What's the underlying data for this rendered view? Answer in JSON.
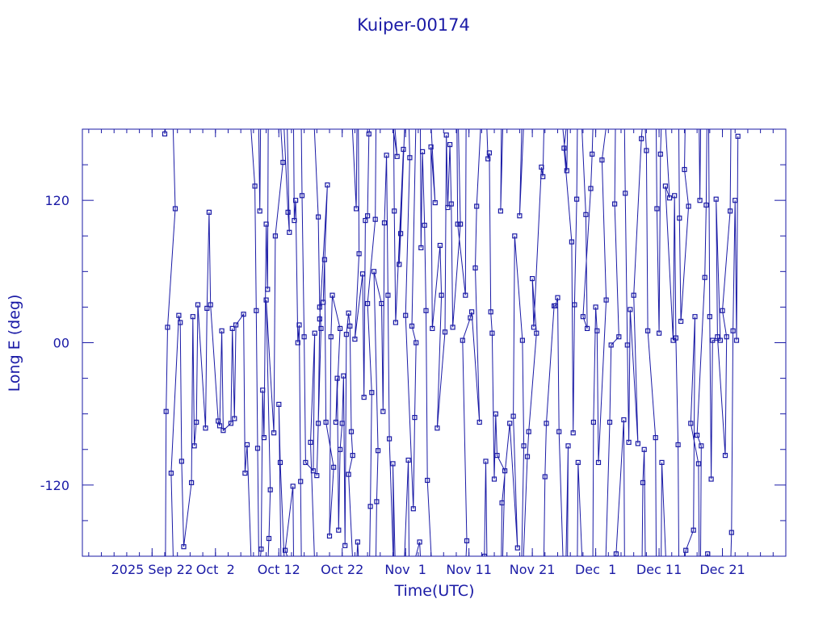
{
  "chart_data": {
    "type": "scatter",
    "title": "Kuiper-00174",
    "xlabel": "Time(UTC)",
    "ylabel": "Long E (deg)",
    "xlim": [
      "2025-09-11",
      "2025-12-31"
    ],
    "ylim": [
      -180,
      180
    ],
    "x_ticks": [
      {
        "date": "2025-09-22",
        "label": "2025 Sep 22"
      },
      {
        "date": "2025-10-02",
        "label": "Oct  2"
      },
      {
        "date": "2025-10-12",
        "label": "Oct 12"
      },
      {
        "date": "2025-10-22",
        "label": "Oct 22"
      },
      {
        "date": "2025-11-01",
        "label": "Nov  1"
      },
      {
        "date": "2025-11-11",
        "label": "Nov 11"
      },
      {
        "date": "2025-11-21",
        "label": "Nov 21"
      },
      {
        "date": "2025-12-01",
        "label": "Dec  1"
      },
      {
        "date": "2025-12-11",
        "label": "Dec 11"
      },
      {
        "date": "2025-12-21",
        "label": "Dec 21"
      }
    ],
    "y_ticks": [
      {
        "value": 120,
        "label": "120"
      },
      {
        "value": 0,
        "label": "00"
      },
      {
        "value": -120,
        "label": "-120"
      }
    ],
    "grid": false,
    "series": [
      {
        "color": "#1a1aa6",
        "marker": "square",
        "points": [
          [
            "2025-09-24",
            176
          ],
          [
            "2025-09-24",
            -58
          ],
          [
            "2025-09-24",
            13
          ],
          [
            "2025-09-25",
            113
          ],
          [
            "2025-09-25",
            -110
          ],
          [
            "2025-09-26",
            23
          ],
          [
            "2025-09-26",
            17
          ],
          [
            "2025-09-26",
            -100
          ],
          [
            "2025-09-27",
            -172
          ],
          [
            "2025-09-28",
            -118
          ],
          [
            "2025-09-28",
            22
          ],
          [
            "2025-09-28",
            -87
          ],
          [
            "2025-09-29",
            -67
          ],
          [
            "2025-09-29",
            32
          ],
          [
            "2025-09-30",
            -72
          ],
          [
            "2025-09-30",
            29
          ],
          [
            "2025-10-01",
            110
          ],
          [
            "2025-10-01",
            32
          ],
          [
            "2025-10-02",
            -66
          ],
          [
            "2025-10-02",
            -70
          ],
          [
            "2025-10-03",
            10
          ],
          [
            "2025-10-03",
            -74
          ],
          [
            "2025-10-04",
            -68
          ],
          [
            "2025-10-04",
            12
          ],
          [
            "2025-10-05",
            -64
          ],
          [
            "2025-10-05",
            15
          ],
          [
            "2025-10-06",
            24
          ],
          [
            "2025-10-06",
            -110
          ],
          [
            "2025-10-07",
            -86
          ],
          [
            "2025-10-08",
            132
          ],
          [
            "2025-10-08",
            27
          ],
          [
            "2025-10-08",
            -89
          ],
          [
            "2025-10-09",
            111
          ],
          [
            "2025-10-09",
            -174
          ],
          [
            "2025-10-09",
            -40
          ],
          [
            "2025-10-09",
            -80
          ],
          [
            "2025-10-10",
            100
          ],
          [
            "2025-10-10",
            45
          ],
          [
            "2025-10-10",
            -165
          ],
          [
            "2025-10-10",
            -124
          ],
          [
            "2025-10-10",
            36
          ],
          [
            "2025-10-11",
            -76
          ],
          [
            "2025-10-11",
            90
          ],
          [
            "2025-10-12",
            152
          ],
          [
            "2025-10-12",
            -52
          ],
          [
            "2025-10-12",
            -101
          ],
          [
            "2025-10-13",
            110
          ],
          [
            "2025-10-13",
            93
          ],
          [
            "2025-10-13",
            -175
          ],
          [
            "2025-10-14",
            -121
          ],
          [
            "2025-10-14",
            103
          ],
          [
            "2025-10-14",
            120
          ],
          [
            "2025-10-15",
            0
          ],
          [
            "2025-10-15",
            15
          ],
          [
            "2025-10-15",
            -117
          ],
          [
            "2025-10-15",
            124
          ],
          [
            "2025-10-16",
            5
          ],
          [
            "2025-10-16",
            -101
          ],
          [
            "2025-10-17",
            -108
          ],
          [
            "2025-10-17",
            8
          ],
          [
            "2025-10-17",
            -84
          ],
          [
            "2025-10-18",
            106
          ],
          [
            "2025-10-18",
            30
          ],
          [
            "2025-10-18",
            12
          ],
          [
            "2025-10-18",
            -112
          ],
          [
            "2025-10-18",
            -68
          ],
          [
            "2025-10-18",
            20
          ],
          [
            "2025-10-19",
            133
          ],
          [
            "2025-10-19",
            34
          ],
          [
            "2025-10-19",
            70
          ],
          [
            "2025-10-19",
            -67
          ],
          [
            "2025-10-20",
            -105
          ],
          [
            "2025-10-20",
            -163
          ],
          [
            "2025-10-20",
            5
          ],
          [
            "2025-10-20",
            40
          ],
          [
            "2025-10-21",
            12
          ],
          [
            "2025-10-21",
            -67
          ],
          [
            "2025-10-21",
            -30
          ],
          [
            "2025-10-21",
            -158
          ],
          [
            "2025-10-21",
            -90
          ],
          [
            "2025-10-22",
            -68
          ],
          [
            "2025-10-22",
            -28
          ],
          [
            "2025-10-22",
            -171
          ],
          [
            "2025-10-22",
            7
          ],
          [
            "2025-10-23",
            25
          ],
          [
            "2025-10-23",
            14
          ],
          [
            "2025-10-23",
            -75
          ],
          [
            "2025-10-23",
            -95
          ],
          [
            "2025-10-23",
            -111
          ],
          [
            "2025-10-24",
            113
          ],
          [
            "2025-10-24",
            -168
          ],
          [
            "2025-10-24",
            75
          ],
          [
            "2025-10-24",
            3
          ],
          [
            "2025-10-25",
            58
          ],
          [
            "2025-10-25",
            -46
          ],
          [
            "2025-10-25",
            103
          ],
          [
            "2025-10-26",
            107
          ],
          [
            "2025-10-26",
            176
          ],
          [
            "2025-10-26",
            -138
          ],
          [
            "2025-10-26",
            -42
          ],
          [
            "2025-10-26",
            33
          ],
          [
            "2025-10-27",
            104
          ],
          [
            "2025-10-27",
            -134
          ],
          [
            "2025-10-27",
            -91
          ],
          [
            "2025-10-27",
            60
          ],
          [
            "2025-10-28",
            33
          ],
          [
            "2025-10-28",
            -58
          ],
          [
            "2025-10-28",
            101
          ],
          [
            "2025-10-29",
            158
          ],
          [
            "2025-10-29",
            40
          ],
          [
            "2025-10-29",
            -81
          ],
          [
            "2025-10-30",
            157
          ],
          [
            "2025-10-30",
            -102
          ],
          [
            "2025-10-30",
            111
          ],
          [
            "2025-10-30",
            17
          ],
          [
            "2025-10-31",
            163
          ],
          [
            "2025-10-31",
            66
          ],
          [
            "2025-10-31",
            92
          ],
          [
            "2025-11-01",
            -99
          ],
          [
            "2025-11-01",
            156
          ],
          [
            "2025-11-01",
            23
          ],
          [
            "2025-11-02",
            -140
          ],
          [
            "2025-11-02",
            -63
          ],
          [
            "2025-11-02",
            0
          ],
          [
            "2025-11-02",
            14
          ],
          [
            "2025-11-03",
            -168
          ],
          [
            "2025-11-03",
            80
          ],
          [
            "2025-11-03",
            161
          ],
          [
            "2025-11-04",
            99
          ],
          [
            "2025-11-04",
            27
          ],
          [
            "2025-11-04",
            -116
          ],
          [
            "2025-11-05",
            118
          ],
          [
            "2025-11-05",
            165
          ],
          [
            "2025-11-05",
            12
          ],
          [
            "2025-11-06",
            82
          ],
          [
            "2025-11-06",
            40
          ],
          [
            "2025-11-06",
            -72
          ],
          [
            "2025-11-07",
            9
          ],
          [
            "2025-11-07",
            175
          ],
          [
            "2025-11-07",
            114
          ],
          [
            "2025-11-08",
            167
          ],
          [
            "2025-11-08",
            117
          ],
          [
            "2025-11-08",
            13
          ],
          [
            "2025-11-09",
            100
          ],
          [
            "2025-11-09",
            -188
          ],
          [
            "2025-11-09",
            100
          ],
          [
            "2025-11-10",
            40
          ],
          [
            "2025-11-10",
            -167
          ],
          [
            "2025-11-10",
            2
          ],
          [
            "2025-11-11",
            21
          ],
          [
            "2025-11-11",
            26
          ],
          [
            "2025-11-12",
            -67
          ],
          [
            "2025-11-12",
            63
          ],
          [
            "2025-11-12",
            115
          ],
          [
            "2025-11-13",
            -180
          ],
          [
            "2025-11-13",
            -100
          ],
          [
            "2025-11-14",
            155
          ],
          [
            "2025-11-14",
            160
          ],
          [
            "2025-11-14",
            26
          ],
          [
            "2025-11-14",
            8
          ],
          [
            "2025-11-15",
            -115
          ],
          [
            "2025-11-15",
            -60
          ],
          [
            "2025-11-15",
            -95
          ],
          [
            "2025-11-16",
            -108
          ],
          [
            "2025-11-16",
            111
          ],
          [
            "2025-11-16",
            -135
          ],
          [
            "2025-11-17",
            -68
          ],
          [
            "2025-11-18",
            -173
          ],
          [
            "2025-11-18",
            -62
          ],
          [
            "2025-11-18",
            90
          ],
          [
            "2025-11-19",
            2
          ],
          [
            "2025-11-19",
            -87
          ],
          [
            "2025-11-19",
            107
          ],
          [
            "2025-11-20",
            -96
          ],
          [
            "2025-11-20",
            -75
          ],
          [
            "2025-11-21",
            8
          ],
          [
            "2025-11-21",
            54
          ],
          [
            "2025-11-21",
            13
          ],
          [
            "2025-11-22",
            148
          ],
          [
            "2025-11-22",
            140
          ],
          [
            "2025-11-23",
            -113
          ],
          [
            "2025-11-23",
            -68
          ],
          [
            "2025-11-24",
            31
          ],
          [
            "2025-11-24",
            31
          ],
          [
            "2025-11-25",
            38
          ],
          [
            "2025-11-25",
            -75
          ],
          [
            "2025-11-26",
            145
          ],
          [
            "2025-11-26",
            -87
          ],
          [
            "2025-11-26",
            164
          ],
          [
            "2025-11-27",
            85
          ],
          [
            "2025-11-27",
            -76
          ],
          [
            "2025-11-27",
            32
          ],
          [
            "2025-11-28",
            121
          ],
          [
            "2025-11-28",
            -101
          ],
          [
            "2025-11-29",
            108
          ],
          [
            "2025-11-29",
            12
          ],
          [
            "2025-11-29",
            22
          ],
          [
            "2025-11-30",
            130
          ],
          [
            "2025-11-30",
            159
          ],
          [
            "2025-11-30",
            -67
          ],
          [
            "2025-12-01",
            30
          ],
          [
            "2025-12-01",
            10
          ],
          [
            "2025-12-01",
            -101
          ],
          [
            "2025-12-02",
            36
          ],
          [
            "2025-12-02",
            154
          ],
          [
            "2025-12-03",
            -67
          ],
          [
            "2025-12-03",
            -2
          ],
          [
            "2025-12-04",
            5
          ],
          [
            "2025-12-04",
            117
          ],
          [
            "2025-12-04",
            -178
          ],
          [
            "2025-12-05",
            -65
          ],
          [
            "2025-12-05",
            126
          ],
          [
            "2025-12-06",
            -2
          ],
          [
            "2025-12-06",
            -84
          ],
          [
            "2025-12-06",
            28
          ],
          [
            "2025-12-07",
            -85
          ],
          [
            "2025-12-07",
            40
          ],
          [
            "2025-12-08",
            172
          ],
          [
            "2025-12-08",
            -118
          ],
          [
            "2025-12-08",
            -90
          ],
          [
            "2025-12-09",
            162
          ],
          [
            "2025-12-09",
            10
          ],
          [
            "2025-12-10",
            -80
          ],
          [
            "2025-12-10",
            113
          ],
          [
            "2025-12-11",
            8
          ],
          [
            "2025-12-11",
            159
          ],
          [
            "2025-12-11",
            -101
          ],
          [
            "2025-12-12",
            122
          ],
          [
            "2025-12-12",
            132
          ],
          [
            "2025-12-13",
            2
          ],
          [
            "2025-12-13",
            124
          ],
          [
            "2025-12-13",
            4
          ],
          [
            "2025-12-14",
            -86
          ],
          [
            "2025-12-14",
            105
          ],
          [
            "2025-12-14",
            18
          ],
          [
            "2025-12-15",
            115
          ],
          [
            "2025-12-15",
            146
          ],
          [
            "2025-12-15",
            -175
          ],
          [
            "2025-12-16",
            -158
          ],
          [
            "2025-12-16",
            22
          ],
          [
            "2025-12-16",
            -68
          ],
          [
            "2025-12-17",
            -102
          ],
          [
            "2025-12-17",
            120
          ],
          [
            "2025-12-17",
            -87
          ],
          [
            "2025-12-17",
            -78
          ],
          [
            "2025-12-18",
            55
          ],
          [
            "2025-12-18",
            116
          ],
          [
            "2025-12-18",
            -178
          ],
          [
            "2025-12-19",
            22
          ],
          [
            "2025-12-19",
            -115
          ],
          [
            "2025-12-19",
            2
          ],
          [
            "2025-12-20",
            2
          ],
          [
            "2025-12-20",
            121
          ],
          [
            "2025-12-20",
            5
          ],
          [
            "2025-12-21",
            -95
          ],
          [
            "2025-12-21",
            5
          ],
          [
            "2025-12-21",
            27
          ],
          [
            "2025-12-22",
            111
          ],
          [
            "2025-12-22",
            -160
          ],
          [
            "2025-12-22",
            10
          ],
          [
            "2025-12-23",
            120
          ],
          [
            "2025-12-23",
            2
          ],
          [
            "2025-12-23",
            174
          ]
        ]
      }
    ]
  }
}
